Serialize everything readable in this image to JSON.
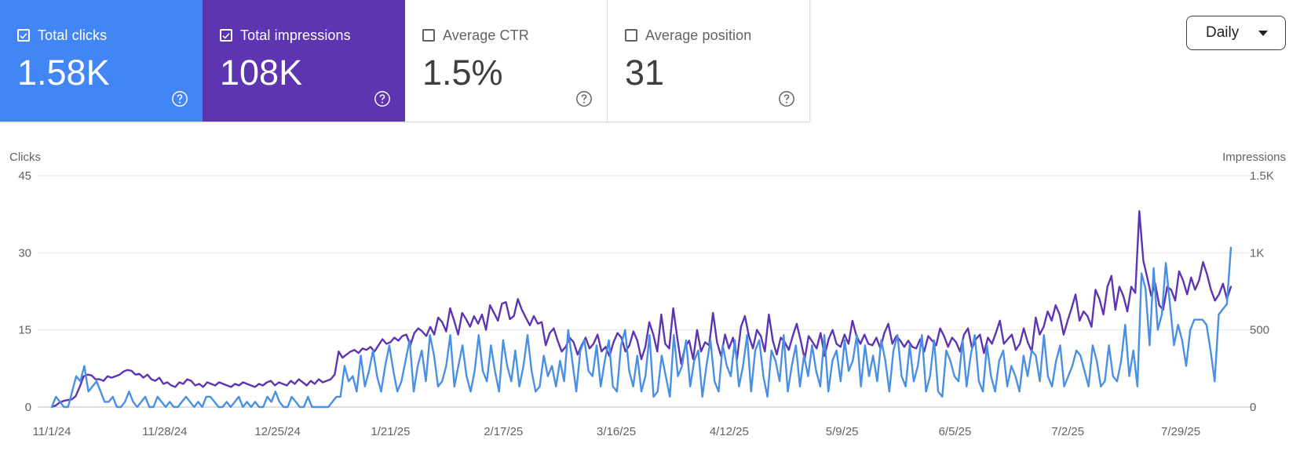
{
  "cards": [
    {
      "label": "Total clicks",
      "value": "1.58K",
      "checked": true,
      "color": "#4285f4",
      "help_icon": "help-circle-icon"
    },
    {
      "label": "Total impressions",
      "value": "108K",
      "checked": true,
      "color": "#5e35b1",
      "help_icon": "help-circle-icon"
    },
    {
      "label": "Average CTR",
      "value": "1.5%",
      "checked": false,
      "color": "#ffffff",
      "help_icon": "help-circle-icon"
    },
    {
      "label": "Average position",
      "value": "31",
      "checked": false,
      "color": "#ffffff",
      "help_icon": "help-circle-icon"
    }
  ],
  "granularity": {
    "selected": "Daily",
    "icon": "chevron-down-icon"
  },
  "chart_data": {
    "type": "line",
    "left_axis": {
      "title": "Clicks",
      "ticks": [
        "0",
        "15",
        "30",
        "45"
      ],
      "ylim": [
        0,
        45
      ]
    },
    "right_axis": {
      "title": "Impressions",
      "ticks": [
        "0",
        "500",
        "1K",
        "1.5K"
      ],
      "ylim": [
        0,
        1500
      ]
    },
    "x_ticks": [
      "11/1/24",
      "11/28/24",
      "12/25/24",
      "1/21/25",
      "2/17/25",
      "3/16/25",
      "4/12/25",
      "5/9/25",
      "6/5/25",
      "7/2/25",
      "7/29/25"
    ],
    "x_range": [
      "2024-11-01",
      "2025-08-10"
    ],
    "grid": true,
    "series": [
      {
        "name": "Total clicks",
        "axis": "left",
        "color": "#4a90e2",
        "values": [
          0,
          2,
          1,
          0,
          0,
          3,
          6,
          5,
          8,
          3,
          4,
          5,
          3,
          1,
          1,
          2,
          0,
          0,
          1,
          3,
          1,
          0,
          1,
          2,
          0,
          0,
          2,
          1,
          0,
          1,
          0,
          0,
          1,
          2,
          1,
          0,
          1,
          0,
          2,
          2,
          1,
          0,
          0,
          1,
          0,
          1,
          2,
          0,
          1,
          0,
          1,
          0,
          0,
          2,
          1,
          3,
          1,
          0,
          0,
          2,
          1,
          0,
          0,
          2,
          0,
          0,
          0,
          0,
          0,
          1,
          2,
          2,
          8,
          5,
          6,
          3,
          10,
          4,
          7,
          11,
          6,
          3,
          8,
          12,
          7,
          3,
          5,
          9,
          13,
          3,
          8,
          11,
          5,
          14,
          10,
          4,
          5,
          8,
          14,
          4,
          8,
          12,
          6,
          3,
          7,
          14,
          7,
          5,
          12,
          7,
          3,
          13,
          8,
          5,
          11,
          4,
          8,
          14,
          7,
          3,
          4,
          10,
          6,
          8,
          4,
          9,
          5,
          15,
          9,
          3,
          11,
          13,
          7,
          6,
          12,
          4,
          9,
          13,
          4,
          3,
          12,
          15,
          7,
          4,
          10,
          3,
          6,
          14,
          2,
          3,
          10,
          6,
          2,
          14,
          6,
          8,
          13,
          4,
          9,
          11,
          2,
          8,
          13,
          5,
          3,
          12,
          8,
          6,
          13,
          4,
          8,
          14,
          3,
          11,
          13,
          6,
          2,
          11,
          9,
          5,
          14,
          3,
          8,
          12,
          4,
          10,
          6,
          12,
          7,
          4,
          14,
          3,
          9,
          11,
          5,
          13,
          7,
          9,
          14,
          4,
          12,
          6,
          10,
          5,
          13,
          9,
          3,
          11,
          14,
          6,
          4,
          12,
          5,
          8,
          14,
          3,
          6,
          13,
          3,
          2,
          11,
          9,
          6,
          5,
          13,
          4,
          10,
          14,
          5,
          3,
          12,
          6,
          3,
          9,
          11,
          4,
          8,
          6,
          3,
          10,
          6,
          11,
          10,
          5,
          14,
          6,
          4,
          9,
          12,
          4,
          6,
          8,
          11,
          10,
          7,
          4,
          12,
          9,
          4,
          5,
          12,
          6,
          5,
          9,
          16,
          6,
          11,
          4,
          26,
          23,
          12,
          27,
          15,
          18,
          28,
          20,
          12,
          16,
          13,
          8,
          15,
          17,
          17,
          17,
          16,
          11,
          5,
          18,
          19,
          20,
          31
        ]
      },
      {
        "name": "Total impressions",
        "axis": "right",
        "color": "#5e35b1",
        "values": [
          0,
          10,
          30,
          40,
          45,
          50,
          70,
          130,
          200,
          210,
          205,
          180,
          180,
          170,
          200,
          190,
          200,
          210,
          230,
          240,
          235,
          210,
          215,
          190,
          210,
          180,
          170,
          190,
          150,
          160,
          140,
          130,
          160,
          150,
          180,
          170,
          140,
          150,
          130,
          160,
          150,
          140,
          160,
          150,
          140,
          130,
          150,
          140,
          160,
          150,
          140,
          130,
          150,
          140,
          160,
          170,
          140,
          160,
          150,
          140,
          170,
          150,
          180,
          160,
          140,
          170,
          150,
          180,
          160,
          170,
          180,
          210,
          360,
          320,
          340,
          360,
          370,
          350,
          380,
          370,
          390,
          360,
          400,
          440,
          410,
          420,
          450,
          430,
          460,
          470,
          400,
          480,
          510,
          490,
          460,
          520,
          470,
          580,
          550,
          490,
          640,
          560,
          470,
          610,
          570,
          520,
          590,
          540,
          600,
          500,
          660,
          610,
          560,
          670,
          680,
          570,
          590,
          700,
          630,
          580,
          530,
          590,
          540,
          550,
          400,
          480,
          510,
          430,
          360,
          390,
          450,
          420,
          340,
          400,
          450,
          380,
          410,
          470,
          360,
          390,
          330,
          420,
          480,
          450,
          360,
          400,
          490,
          430,
          310,
          390,
          550,
          470,
          360,
          600,
          410,
          380,
          640,
          450,
          280,
          390,
          430,
          310,
          500,
          360,
          420,
          400,
          610,
          420,
          330,
          470,
          380,
          450,
          310,
          520,
          590,
          460,
          380,
          500,
          460,
          360,
          600,
          430,
          340,
          450,
          420,
          370,
          460,
          540,
          430,
          310,
          460,
          420,
          380,
          480,
          330,
          440,
          500,
          410,
          390,
          470,
          410,
          560,
          460,
          410,
          470,
          410,
          400,
          450,
          380,
          480,
          540,
          410,
          460,
          430,
          390,
          430,
          390,
          380,
          440,
          360,
          460,
          430,
          400,
          510,
          460,
          390,
          450,
          420,
          360,
          470,
          510,
          380,
          440,
          470,
          350,
          450,
          410,
          480,
          560,
          410,
          440,
          470,
          370,
          410,
          510,
          420,
          360,
          580,
          470,
          520,
          620,
          560,
          660,
          600,
          470,
          560,
          640,
          730,
          560,
          620,
          590,
          520,
          760,
          700,
          600,
          780,
          850,
          630,
          780,
          720,
          620,
          780,
          740,
          1270,
          950,
          840,
          720,
          800,
          660,
          630,
          780,
          760,
          690,
          880,
          820,
          730,
          840,
          760,
          820,
          940,
          860,
          760,
          690,
          730,
          800,
          700,
          780
        ]
      }
    ]
  }
}
